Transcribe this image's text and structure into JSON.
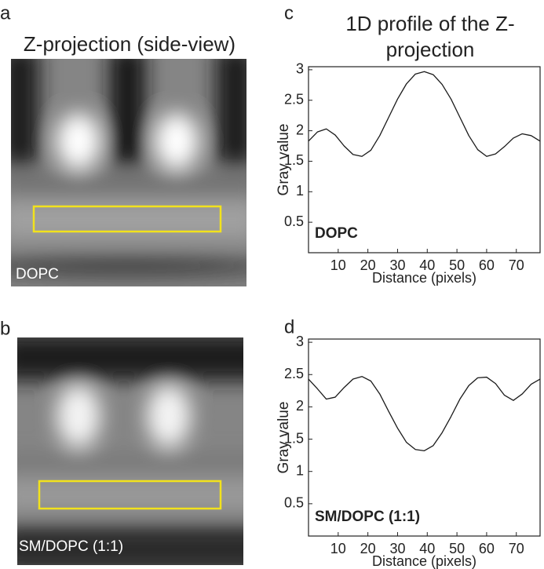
{
  "figure": {
    "panel_labels": [
      "a",
      "b",
      "c",
      "d"
    ],
    "image_title": "Z-projection (side-view)",
    "images": [
      {
        "label": "DOPC"
      },
      {
        "label": "SM/DOPC (1:1)"
      }
    ]
  },
  "chart_data": [
    {
      "type": "line",
      "title": "1D profile of the Z-projection",
      "xlabel": "Distance (pixels)",
      "ylabel": "Gray value",
      "annotation": "DOPC",
      "x": [
        0,
        3,
        6,
        9,
        12,
        15,
        18,
        21,
        24,
        27,
        30,
        33,
        36,
        39,
        42,
        45,
        48,
        51,
        54,
        57,
        60,
        63,
        66,
        69,
        72,
        75,
        78
      ],
      "series": [
        {
          "color": "#1a1a1a",
          "values": [
            1.83,
            1.98,
            2.03,
            1.93,
            1.75,
            1.61,
            1.58,
            1.68,
            1.92,
            2.22,
            2.52,
            2.77,
            2.93,
            2.97,
            2.92,
            2.76,
            2.52,
            2.22,
            1.92,
            1.69,
            1.58,
            1.62,
            1.74,
            1.88,
            1.95,
            1.92,
            1.83
          ]
        }
      ],
      "xlim": [
        0,
        78
      ],
      "ylim": [
        0,
        3.05
      ],
      "xticks": [
        10,
        20,
        30,
        40,
        50,
        60,
        70
      ],
      "yticks": [
        0.5,
        1,
        1.5,
        2,
        2.5,
        3
      ]
    },
    {
      "type": "line",
      "xlabel": "Distance (pixels)",
      "ylabel": "Gray value",
      "annotation": "SM/DOPC (1:1)",
      "x": [
        0,
        3,
        6,
        9,
        12,
        15,
        18,
        21,
        24,
        27,
        30,
        33,
        36,
        39,
        42,
        45,
        48,
        51,
        54,
        57,
        60,
        63,
        66,
        69,
        72,
        75,
        78
      ],
      "series": [
        {
          "color": "#1a1a1a",
          "values": [
            2.43,
            2.28,
            2.12,
            2.15,
            2.3,
            2.43,
            2.47,
            2.4,
            2.2,
            1.93,
            1.67,
            1.45,
            1.34,
            1.32,
            1.4,
            1.6,
            1.85,
            2.12,
            2.33,
            2.45,
            2.46,
            2.36,
            2.18,
            2.1,
            2.2,
            2.35,
            2.43
          ]
        }
      ],
      "xlim": [
        0,
        78
      ],
      "ylim": [
        0,
        3.05
      ],
      "xticks": [
        10,
        20,
        30,
        40,
        50,
        60,
        70
      ],
      "yticks": [
        0.5,
        1,
        1.5,
        2,
        2.5,
        3
      ]
    }
  ]
}
